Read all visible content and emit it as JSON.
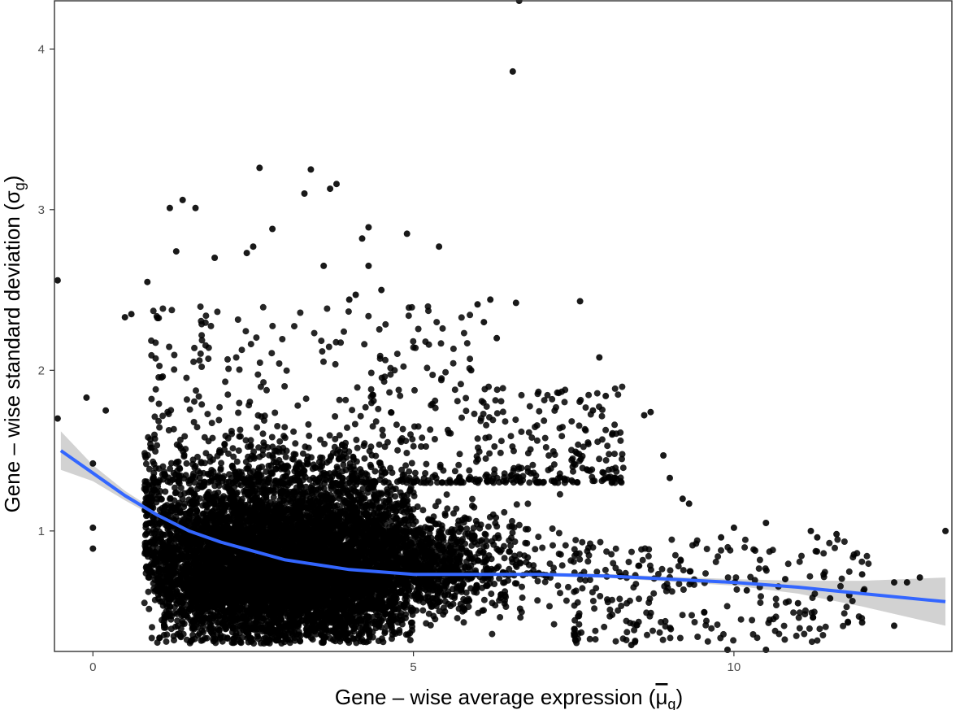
{
  "chart_data": {
    "type": "scatter",
    "title": "",
    "xlabel": "Gene – wise average expression (μg)",
    "ylabel": "Gene – wise standard deviation (σg)",
    "xlabel_parts": {
      "prefix": "Gene – wise average expression (",
      "symbol": "μ",
      "sub": "g",
      "suffix": ")"
    },
    "ylabel_parts": {
      "prefix": "Gene – wise standard deviation (",
      "symbol": "σ",
      "sub": "g",
      "suffix": ")"
    },
    "xlim": [
      -0.6,
      13.4
    ],
    "ylim": [
      0.25,
      4.3
    ],
    "x_ticks": [
      0,
      5,
      10
    ],
    "y_ticks": [
      1,
      2,
      3,
      4
    ],
    "x_tick_labels": [
      "0",
      "5",
      "10"
    ],
    "y_tick_labels": [
      "1",
      "2",
      "3",
      "4"
    ],
    "grid": false,
    "legend": "none",
    "colors": {
      "points": "#000000",
      "smooth_line": "#3366ff",
      "confidence_band": "#bfbfbf"
    },
    "dense_cloud": {
      "x_center": 3.0,
      "y_center": 0.75,
      "approx_points": 9000,
      "x_range": [
        0.8,
        7.5
      ],
      "y_range": [
        0.3,
        1.6
      ]
    },
    "points": [
      [
        -0.55,
        2.56
      ],
      [
        -0.55,
        1.7
      ],
      [
        -0.1,
        1.83
      ],
      [
        0.0,
        1.42
      ],
      [
        0.0,
        1.02
      ],
      [
        0.0,
        0.89
      ],
      [
        0.2,
        1.75
      ],
      [
        0.5,
        2.33
      ],
      [
        0.6,
        2.35
      ],
      [
        0.85,
        2.55
      ],
      [
        1.2,
        3.01
      ],
      [
        1.4,
        3.06
      ],
      [
        1.6,
        3.01
      ],
      [
        1.3,
        2.74
      ],
      [
        1.9,
        2.7
      ],
      [
        2.6,
        3.26
      ],
      [
        2.5,
        2.77
      ],
      [
        2.4,
        2.73
      ],
      [
        2.8,
        2.88
      ],
      [
        3.3,
        3.1
      ],
      [
        3.4,
        3.25
      ],
      [
        3.7,
        3.13
      ],
      [
        3.8,
        3.16
      ],
      [
        4.3,
        2.89
      ],
      [
        4.2,
        2.82
      ],
      [
        4.0,
        2.44
      ],
      [
        4.1,
        2.47
      ],
      [
        4.9,
        2.85
      ],
      [
        5.4,
        2.77
      ],
      [
        3.6,
        2.65
      ],
      [
        4.3,
        2.65
      ],
      [
        4.5,
        2.5
      ],
      [
        6.55,
        3.86
      ],
      [
        6.65,
        4.3
      ],
      [
        6.6,
        2.42
      ],
      [
        6.0,
        2.41
      ],
      [
        6.2,
        2.44
      ],
      [
        7.6,
        2.43
      ],
      [
        7.9,
        2.08
      ],
      [
        6.1,
        2.3
      ],
      [
        6.3,
        2.2
      ],
      [
        5.9,
        2.0
      ],
      [
        8.0,
        1.84
      ],
      [
        8.6,
        1.72
      ],
      [
        8.7,
        1.74
      ],
      [
        8.9,
        1.47
      ],
      [
        9.0,
        1.33
      ],
      [
        9.2,
        1.2
      ],
      [
        9.3,
        1.17
      ],
      [
        7.8,
        1.75
      ],
      [
        8.1,
        1.6
      ],
      [
        9.8,
        0.96
      ],
      [
        10.0,
        1.02
      ],
      [
        10.5,
        1.05
      ],
      [
        11.2,
        1.0
      ],
      [
        11.3,
        0.96
      ],
      [
        11.6,
        0.98
      ],
      [
        12.0,
        0.73
      ],
      [
        12.5,
        0.68
      ],
      [
        12.7,
        0.68
      ],
      [
        12.9,
        0.71
      ],
      [
        13.3,
        1.0
      ],
      [
        12.5,
        0.41
      ],
      [
        12.0,
        0.43
      ],
      [
        10.5,
        0.26
      ],
      [
        9.9,
        0.26
      ],
      [
        8.4,
        0.29
      ],
      [
        11.0,
        0.55
      ],
      [
        11.5,
        0.58
      ],
      [
        11.8,
        0.6
      ],
      [
        10.8,
        0.7
      ],
      [
        10.2,
        0.63
      ]
    ],
    "smooth_line": {
      "x": [
        -0.5,
        0.0,
        0.5,
        1.0,
        1.5,
        2.0,
        3.0,
        4.0,
        5.0,
        6.0,
        7.0,
        8.0,
        9.0,
        10.0,
        11.0,
        12.0,
        13.3
      ],
      "y": [
        1.5,
        1.36,
        1.22,
        1.1,
        1.0,
        0.93,
        0.82,
        0.76,
        0.73,
        0.73,
        0.73,
        0.72,
        0.7,
        0.68,
        0.65,
        0.61,
        0.56
      ],
      "ci_halfwidth": [
        0.12,
        0.05,
        0.03,
        0.02,
        0.015,
        0.01,
        0.01,
        0.01,
        0.01,
        0.01,
        0.01,
        0.012,
        0.015,
        0.02,
        0.04,
        0.08,
        0.15
      ]
    }
  }
}
